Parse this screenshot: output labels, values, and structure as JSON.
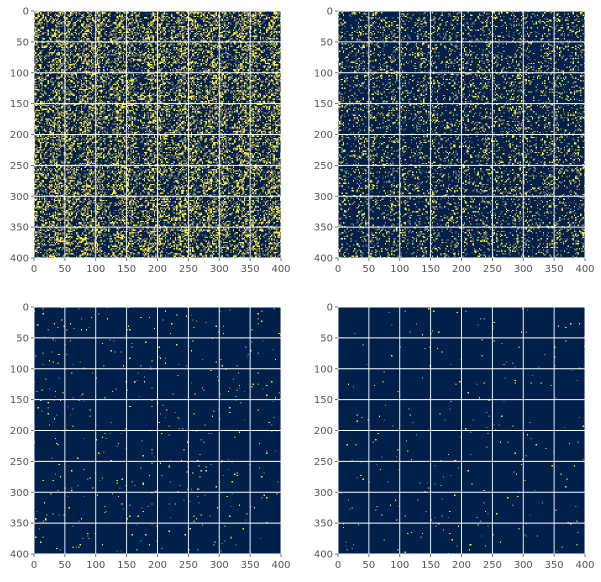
{
  "chart_data": [
    {
      "type": "heatmap",
      "title": "",
      "xlabel": "",
      "ylabel": "",
      "xlim": [
        0,
        400
      ],
      "ylim": [
        400,
        0
      ],
      "xticks": [
        "0",
        "50",
        "100",
        "150",
        "200",
        "250",
        "300",
        "350",
        "400"
      ],
      "yticks": [
        "0",
        "50",
        "100",
        "150",
        "200",
        "250",
        "300",
        "350",
        "400"
      ],
      "grid": true,
      "colormap": "cividis",
      "background_color": "#00204c",
      "highlight_color": "#fde737",
      "mid_color": "#7c7b78",
      "density": 0.3,
      "structure": "strong periodic tiled pattern"
    },
    {
      "type": "heatmap",
      "title": "",
      "xlabel": "",
      "ylabel": "",
      "xlim": [
        0,
        400
      ],
      "ylim": [
        400,
        0
      ],
      "xticks": [
        "0",
        "50",
        "100",
        "150",
        "200",
        "250",
        "300",
        "350",
        "400"
      ],
      "yticks": [
        "0",
        "50",
        "100",
        "150",
        "200",
        "250",
        "300",
        "350",
        "400"
      ],
      "grid": true,
      "colormap": "cividis",
      "background_color": "#00204c",
      "highlight_color": "#fde737",
      "mid_color": "#7c7b78",
      "density": 0.14,
      "structure": "faint periodic tiled pattern"
    },
    {
      "type": "heatmap",
      "title": "",
      "xlabel": "",
      "ylabel": "",
      "xlim": [
        0,
        400
      ],
      "ylim": [
        400,
        0
      ],
      "xticks": [
        "0",
        "50",
        "100",
        "150",
        "200",
        "250",
        "300",
        "350",
        "400"
      ],
      "yticks": [
        "0",
        "50",
        "100",
        "150",
        "200",
        "250",
        "300",
        "350",
        "400"
      ],
      "grid": true,
      "colormap": "cividis",
      "background_color": "#00204c",
      "highlight_color": "#fde737",
      "mid_color": "#7c7b78",
      "density": 0.012,
      "structure": "sparse random"
    },
    {
      "type": "heatmap",
      "title": "",
      "xlabel": "",
      "ylabel": "",
      "xlim": [
        0,
        400
      ],
      "ylim": [
        400,
        0
      ],
      "xticks": [
        "0",
        "50",
        "100",
        "150",
        "200",
        "250",
        "300",
        "350",
        "400"
      ],
      "yticks": [
        "0",
        "50",
        "100",
        "150",
        "200",
        "250",
        "300",
        "350",
        "400"
      ],
      "grid": true,
      "colormap": "cividis",
      "background_color": "#00204c",
      "highlight_color": "#fde737",
      "mid_color": "#7c7b78",
      "density": 0.007,
      "structure": "very sparse random"
    }
  ]
}
